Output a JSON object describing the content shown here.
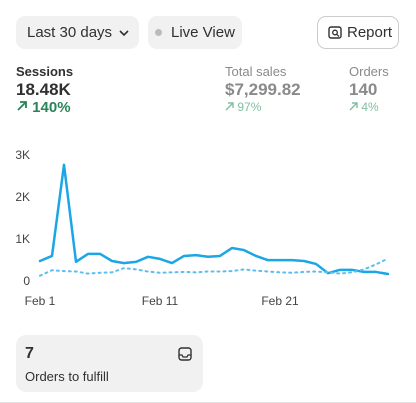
{
  "header": {
    "date_range": "Last 30 days",
    "live_view": "Live View",
    "report": "Report"
  },
  "metrics": [
    {
      "label": "Sessions",
      "value": "18.48K",
      "change": "140%"
    },
    {
      "label": "Total sales",
      "value": "$7,299.82",
      "change": "97%"
    },
    {
      "label": "Orders",
      "value": "140",
      "change": "4%"
    }
  ],
  "chart_data": {
    "type": "line",
    "x": [
      1,
      2,
      3,
      4,
      5,
      6,
      7,
      8,
      9,
      10,
      11,
      12,
      13,
      14,
      15,
      16,
      17,
      18,
      19,
      20,
      21,
      22,
      23,
      24,
      25,
      26,
      27,
      28,
      29,
      30
    ],
    "series": [
      {
        "color": "#1ba6e6",
        "values": [
          500,
          620,
          2790,
          480,
          670,
          670,
          500,
          450,
          480,
          600,
          550,
          450,
          620,
          640,
          600,
          620,
          810,
          760,
          620,
          520,
          520,
          520,
          500,
          430,
          210,
          290,
          290,
          240,
          240,
          190
        ]
      },
      {
        "color": "#5cbdf0",
        "dashed": true,
        "values": [
          150,
          280,
          260,
          250,
          200,
          220,
          230,
          330,
          300,
          250,
          220,
          230,
          240,
          230,
          250,
          250,
          260,
          300,
          270,
          250,
          230,
          220,
          240,
          250,
          230,
          200,
          230,
          300,
          420,
          560
        ]
      }
    ],
    "xlim": [
      1,
      31
    ],
    "xticks": [
      {
        "value": 1,
        "label": "Feb 1"
      },
      {
        "value": 11,
        "label": "Feb 11"
      },
      {
        "value": 21,
        "label": "Feb 21"
      }
    ],
    "ylim": [
      0,
      3000
    ],
    "yticks": [
      0,
      {
        "value": 1000,
        "label": "1K"
      },
      {
        "value": 2000,
        "label": "2K"
      },
      {
        "value": 3000,
        "label": "3K"
      }
    ]
  },
  "card": {
    "count": 7,
    "label": "Orders to fulfill"
  }
}
